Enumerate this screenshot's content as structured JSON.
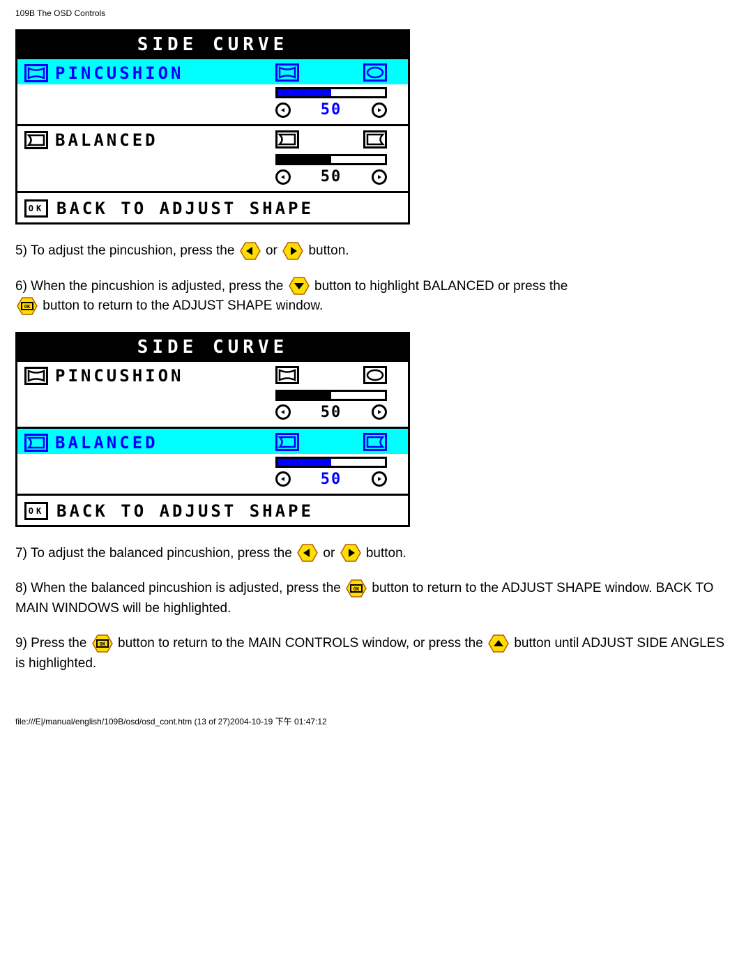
{
  "page_header": "109B The OSD Controls",
  "footer": "file:///E|/manual/english/109B/osd/osd_cont.htm (13 of 27)2004-10-19 下午 01:47:12",
  "colors": {
    "selected_bg": "#00ffff",
    "label_selected": "#0000ff",
    "label_idle": "#000000",
    "hex_fill": "#ffdd00",
    "hex_stroke": "#b06000"
  },
  "osd1": {
    "title": "SIDE CURVE",
    "rows": [
      {
        "id": "pincushion",
        "label": "PINCUSHION",
        "selected": true,
        "value": 50,
        "progress_pct": 50,
        "fill_color": "#0000ff"
      },
      {
        "id": "balanced",
        "label": "BALANCED",
        "selected": false,
        "value": 50,
        "progress_pct": 50,
        "fill_color": "#000000"
      }
    ],
    "footer_label": "BACK TO ADJUST SHAPE"
  },
  "osd2": {
    "title": "SIDE CURVE",
    "rows": [
      {
        "id": "pincushion",
        "label": "PINCUSHION",
        "selected": false,
        "value": 50,
        "progress_pct": 50,
        "fill_color": "#000000"
      },
      {
        "id": "balanced",
        "label": "BALANCED",
        "selected": true,
        "value": 50,
        "progress_pct": 50,
        "fill_color": "#0000ff"
      }
    ],
    "footer_label": "BACK TO ADJUST SHAPE"
  },
  "steps": {
    "s5a": "5) To adjust the pincushion, press the ",
    "s5b": " or ",
    "s5c": " button.",
    "s6a": "6) When the pincushion is adjusted, press the ",
    "s6b": " button to highlight BALANCED or press the ",
    "s6c": " button to return to the ADJUST SHAPE window.",
    "s7a": "7) To adjust the balanced pincushion, press the ",
    "s7b": " or ",
    "s7c": " button.",
    "s8a": "8) When the balanced pincushion is adjusted, press the ",
    "s8b": " button to return to the ADJUST SHAPE window. BACK TO MAIN WINDOWS will be highlighted.",
    "s9a": "9) Press the ",
    "s9b": " button to return to the MAIN CONTROLS window, or press the ",
    "s9c": " button until ADJUST SIDE ANGLES is highlighted."
  }
}
